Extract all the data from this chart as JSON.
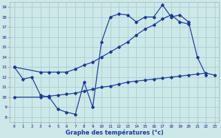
{
  "bg_color": "#cce8e8",
  "grid_color": "#b0d0d0",
  "line_color": "#1a3a9a",
  "title": "Graphe des températures (°c)",
  "xlim": [
    -0.5,
    23.5
  ],
  "ylim": [
    7.5,
    19.5
  ],
  "xtick_pos": [
    0,
    1,
    2,
    3,
    4,
    5,
    6,
    7,
    8,
    9,
    10,
    11,
    12,
    13,
    14,
    15,
    16,
    17,
    18,
    19,
    20,
    21,
    22,
    23
  ],
  "xtick_labels": [
    "0",
    "1",
    "2",
    "3",
    "4",
    "5",
    "6",
    "7",
    "8",
    "9",
    "10",
    "11",
    "12",
    "13",
    "14",
    "15",
    "16",
    "17",
    "18",
    "19",
    "20",
    "21",
    "22",
    "23"
  ],
  "ytick_pos": [
    8,
    9,
    10,
    11,
    12,
    13,
    14,
    15,
    16,
    17,
    18,
    19
  ],
  "ytick_labels": [
    "8",
    "9",
    "10",
    "11",
    "12",
    "13",
    "14",
    "15",
    "16",
    "17",
    "18",
    "19"
  ],
  "line1_x": [
    0,
    1,
    2,
    3,
    4,
    5,
    6,
    7,
    8,
    9,
    10,
    11,
    12,
    13,
    14,
    15,
    16,
    17,
    18,
    19,
    20,
    21,
    22
  ],
  "line1_y": [
    13,
    11.8,
    12,
    10.2,
    10.0,
    8.8,
    8.5,
    8.3,
    11.5,
    9.0,
    15.5,
    18.0,
    18.3,
    18.2,
    17.5,
    18.0,
    18.0,
    19.2,
    18.0,
    18.2,
    17.5,
    14.0,
    12.2
  ],
  "line2_x": [
    0,
    3,
    4,
    5,
    6,
    7,
    8,
    9,
    10,
    11,
    12,
    13,
    14,
    15,
    16,
    17,
    18,
    19,
    20
  ],
  "line2_y": [
    13,
    12.5,
    12.5,
    12.5,
    12.5,
    12.8,
    13.2,
    13.5,
    14.0,
    14.5,
    15.0,
    15.5,
    16.2,
    16.8,
    17.2,
    17.8,
    18.2,
    17.5,
    17.3
  ],
  "line3_x": [
    0,
    3,
    4,
    5,
    6,
    7,
    8,
    9,
    10,
    11,
    12,
    13,
    14,
    15,
    16,
    17,
    18,
    19,
    20,
    21,
    22,
    23
  ],
  "line3_y": [
    10.0,
    10.0,
    10.1,
    10.2,
    10.3,
    10.4,
    10.6,
    10.8,
    11.0,
    11.1,
    11.3,
    11.5,
    11.6,
    11.7,
    11.8,
    11.9,
    12.0,
    12.1,
    12.2,
    12.3,
    12.4,
    12.2
  ]
}
